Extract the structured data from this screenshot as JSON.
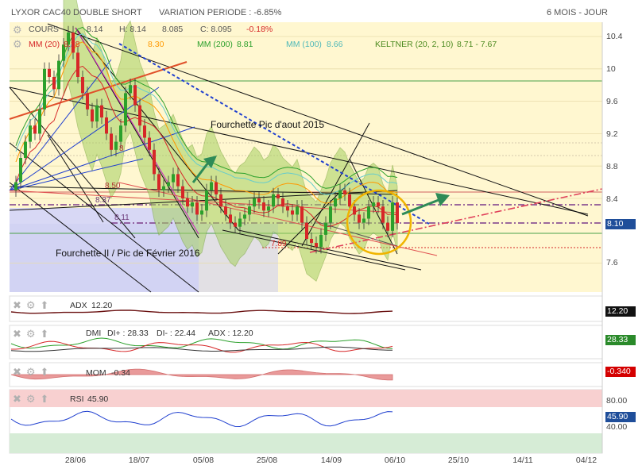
{
  "header": {
    "instrument": "LYXOR CAC40 DOUBLE SHORT",
    "variation": "VARIATION PERIODE : -6.85%",
    "period": "6 MOIS - JOUR"
  },
  "legend": {
    "cours": "COURS",
    "open": "8.14",
    "high": "H: 8.14",
    "low": "8.085",
    "close": "C: 8.095",
    "change": "-0.18%",
    "mm20": "MM (20)",
    "mm20_value": "8.18",
    "mm50_value": "8.30",
    "mm200": "MM (200)",
    "mm200_value": "8.81",
    "mm100": "MM (100)",
    "mm100_value": "8.66",
    "keltner": "KELTNER (20, 2, 10)",
    "keltner_value": "8.71 - 7.67"
  },
  "annotations": {
    "fork_aug": "Fourchette Pic d'aout 2015",
    "fork_feb": "Fourchette II / Pic de Février 2016",
    "lvl_850": "8.50",
    "lvl_837": "8.37",
    "lvl_811": "8.11",
    "lvl_789": "7.89",
    "lvl_8x": "8"
  },
  "panels": {
    "adx": {
      "title": "ADX",
      "value": "12.20",
      "badge": "12.20"
    },
    "dmi": {
      "title": "DMI",
      "di_plus": "DI+ : 28.33",
      "di_minus": "DI- : 22.44",
      "adx": "ADX : 12.20",
      "badge": "28.33"
    },
    "mom": {
      "title": "MOM",
      "value": "-0.34",
      "badge": "-0.340"
    },
    "rsi": {
      "title": "RSI",
      "value": "45.90",
      "badge": "45.90",
      "ticks": [
        "80.00",
        "40.00"
      ]
    }
  },
  "colors": {
    "up": "#2ca02c",
    "down": "#d62728",
    "mm20": "#d62728",
    "mm50": "#ff9900",
    "mm200": "#2ca02c",
    "mm100": "#66cccc",
    "keltner": "#99cc66",
    "bluedash": "#1f3fcf",
    "circle": "#f0b400",
    "price_badge": "#1f4e9a",
    "dmi_badge": "#2a8a2a",
    "mom_badge": "#d40000"
  },
  "chart_data": {
    "type": "candlestick",
    "price_axis": {
      "ticks": [
        10.4,
        10.0,
        9.6,
        9.2,
        8.8,
        8.4,
        7.6
      ],
      "range": [
        7.2,
        10.6
      ],
      "last": "8.10"
    },
    "x_labels": [
      "28/06",
      "18/07",
      "05/08",
      "25/08",
      "14/09",
      "06/10",
      "25/10",
      "14/11",
      "04/12"
    ],
    "closes": [
      8.6,
      8.9,
      9.1,
      9.3,
      9.2,
      9.5,
      10.0,
      9.9,
      9.75,
      10.1,
      10.3,
      10.45,
      10.2,
      9.9,
      9.7,
      9.5,
      9.35,
      9.55,
      9.4,
      9.2,
      9.0,
      9.1,
      9.3,
      9.7,
      9.8,
      9.55,
      9.3,
      9.15,
      9.0,
      8.7,
      8.5,
      8.55,
      8.6,
      8.7,
      8.55,
      8.4,
      8.3,
      8.35,
      8.2,
      8.25,
      8.5,
      8.6,
      8.45,
      8.3,
      8.2,
      8.1,
      8.05,
      8.15,
      8.2,
      8.3,
      8.4,
      8.35,
      8.25,
      8.3,
      8.45,
      8.4,
      8.3,
      8.25,
      8.2,
      8.3,
      8.1,
      7.9,
      7.85,
      7.8,
      7.95,
      8.1,
      8.3,
      8.4,
      8.5,
      8.45,
      8.3,
      8.2,
      8.1,
      8.15,
      8.3,
      8.35,
      8.3,
      8.1,
      8.0,
      8.35,
      8.095
    ]
  }
}
